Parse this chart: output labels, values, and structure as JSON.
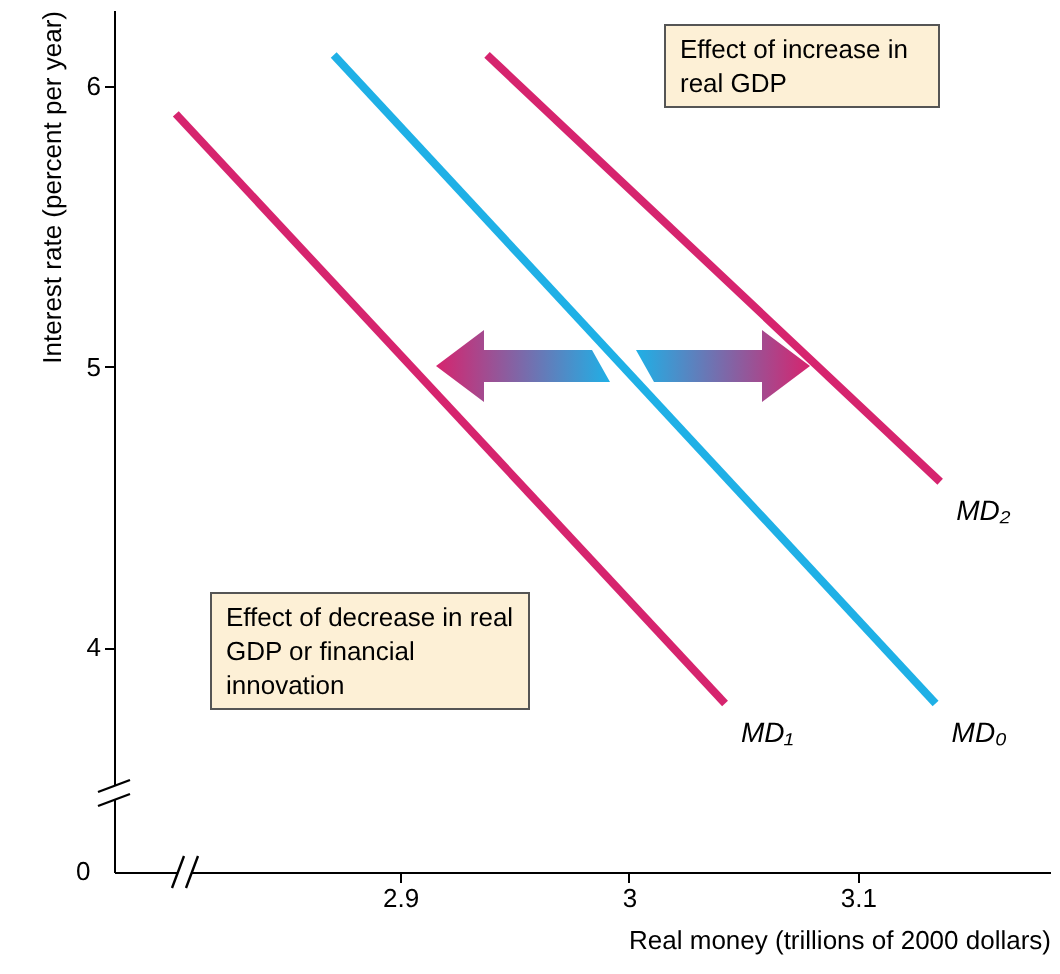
{
  "chart_data": {
    "type": "line",
    "xlabel": "Real money (trillions of 2000 dollars)",
    "ylabel": "Interest rate (percent per year)",
    "xlim": [
      2.775,
      3.184
    ],
    "xticks": [
      2.9,
      3.0,
      3.1
    ],
    "ylim": [
      3.2,
      6.27
    ],
    "yticks": [
      4,
      5,
      6
    ],
    "series": [
      {
        "name": "MD₁",
        "color": "#d6246e",
        "x": [
          2.802,
          3.042
        ],
        "values": [
          5.9,
          3.8
        ]
      },
      {
        "name": "MD₀",
        "color": "#1fb0e6",
        "x": [
          2.871,
          3.134
        ],
        "values": [
          6.11,
          3.8
        ]
      },
      {
        "name": "MD₂",
        "color": "#d6246e",
        "x": [
          2.938,
          3.136
        ],
        "values": [
          6.11,
          4.59
        ]
      }
    ],
    "annotations": [
      "Effect of increase in real GDP",
      "Effect of decrease in real GDP or financial innovation",
      "0"
    ],
    "grid": false,
    "marker": "none",
    "line_style": "solid"
  }
}
